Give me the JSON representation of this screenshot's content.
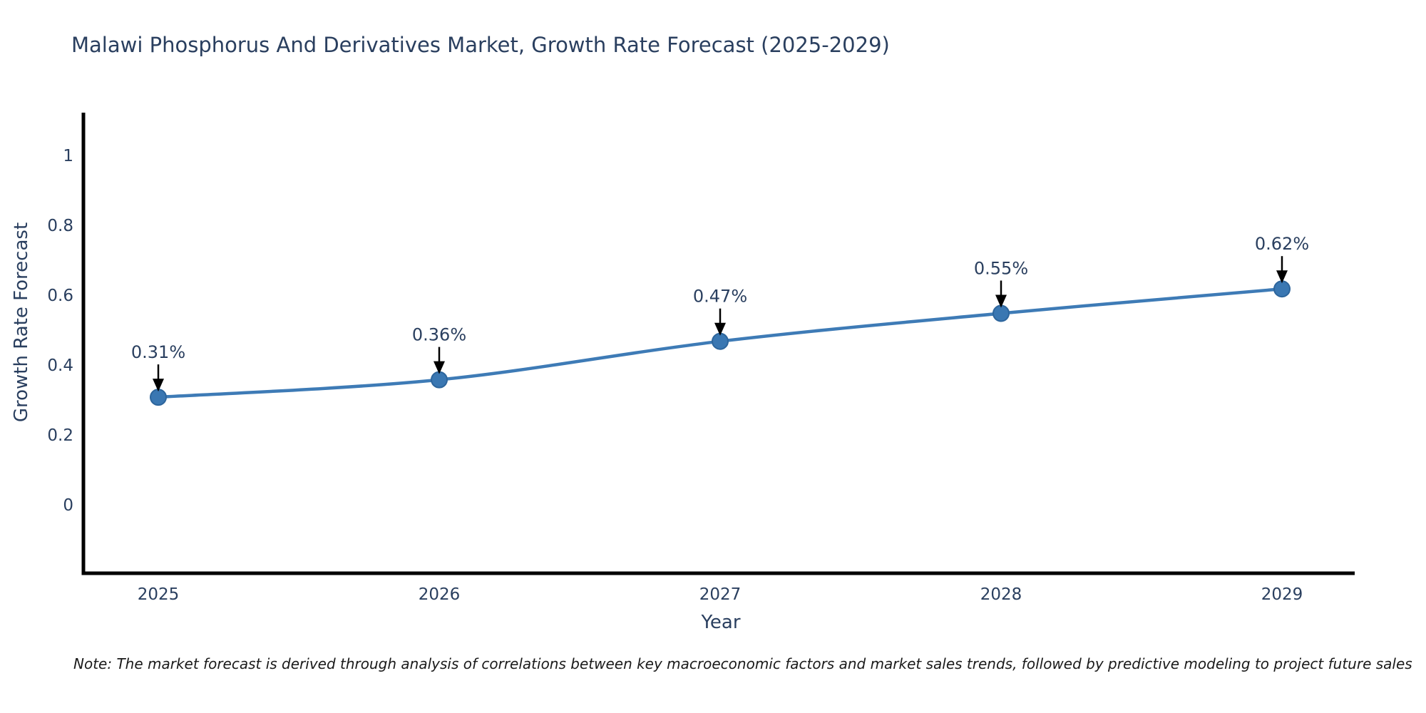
{
  "page": {
    "background_color": "#ffffff"
  },
  "chart_data": {
    "type": "line",
    "title": "Malawi Phosphorus And Derivatives Market, Growth Rate Forecast (2025-2029)",
    "xlabel": "Year",
    "ylabel": "Growth Rate Forecast",
    "categories": [
      "2025",
      "2026",
      "2027",
      "2028",
      "2029"
    ],
    "series": [
      {
        "name": "Growth Rate Forecast",
        "values": [
          0.31,
          0.36,
          0.47,
          0.55,
          0.62
        ]
      }
    ],
    "point_labels": [
      "0.31%",
      "0.36%",
      "0.47%",
      "0.55%",
      "0.62%"
    ],
    "y_ticks": [
      "1",
      "0.8",
      "0.6",
      "0.4",
      "0.2",
      "0"
    ],
    "y_tick_values": [
      1,
      0.8,
      0.6,
      0.4,
      0.2,
      0
    ],
    "ylim": [
      -0.22,
      1.12
    ],
    "grid": false,
    "legend_position": "none",
    "marker_style": "circle-with-down-arrow-annotation",
    "colors": {
      "line": "#3e7bb6",
      "marker_fill": "#3a77b2",
      "marker_edge": "#2d659c",
      "axis_line": "#000000",
      "text": "#2a3f5f",
      "annotation_text": "#2a3f5f",
      "annotation_arrow": "#000000"
    }
  },
  "footnote": {
    "text": "Note: The market forecast is derived through analysis of correlations between key macroeconomic factors and market sales trends, followed by predictive modeling to project future sales"
  }
}
